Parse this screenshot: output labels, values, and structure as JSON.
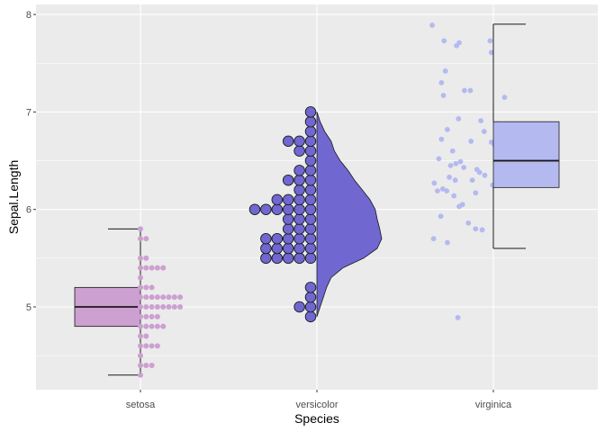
{
  "chart_data": {
    "type": "raincloud",
    "title": "",
    "xlabel": "Species",
    "ylabel": "Sepal.Length",
    "categories": [
      "setosa",
      "versicolor",
      "virginica"
    ],
    "ylim": [
      4.15,
      8.05
    ],
    "yticks": [
      5,
      6,
      7,
      8
    ],
    "grid": true,
    "legend": "none",
    "colors": {
      "panel": "#EBEBEB",
      "grid": "#FFFFFF",
      "setosa": "#CCA0D0",
      "versicolor": "#7067D0",
      "virginica": "#B4BAF0",
      "outline": "#1a1a1a"
    },
    "series": [
      {
        "name": "setosa",
        "geom": "boxplot+dotplot",
        "box": {
          "min": 4.3,
          "q1": 4.8,
          "median": 5.0,
          "q3": 5.2,
          "max": 5.8
        },
        "dots": [
          {
            "y": 4.3,
            "count": 1
          },
          {
            "y": 4.4,
            "count": 3
          },
          {
            "y": 4.5,
            "count": 1
          },
          {
            "y": 4.6,
            "count": 4
          },
          {
            "y": 4.7,
            "count": 2
          },
          {
            "y": 4.8,
            "count": 5
          },
          {
            "y": 4.9,
            "count": 4
          },
          {
            "y": 5.0,
            "count": 8
          },
          {
            "y": 5.1,
            "count": 8
          },
          {
            "y": 5.2,
            "count": 3
          },
          {
            "y": 5.3,
            "count": 1
          },
          {
            "y": 5.4,
            "count": 5
          },
          {
            "y": 5.5,
            "count": 2
          },
          {
            "y": 5.7,
            "count": 2
          },
          {
            "y": 5.8,
            "count": 1
          }
        ]
      },
      {
        "name": "versicolor",
        "geom": "dotplot+halfviolin",
        "dots": [
          {
            "y": 4.9,
            "count": 1
          },
          {
            "y": 5.0,
            "count": 2
          },
          {
            "y": 5.1,
            "count": 1
          },
          {
            "y": 5.2,
            "count": 1
          },
          {
            "y": 5.5,
            "count": 5
          },
          {
            "y": 5.6,
            "count": 5
          },
          {
            "y": 5.7,
            "count": 5
          },
          {
            "y": 5.8,
            "count": 3
          },
          {
            "y": 5.9,
            "count": 3
          },
          {
            "y": 6.0,
            "count": 6
          },
          {
            "y": 6.1,
            "count": 4
          },
          {
            "y": 6.2,
            "count": 2
          },
          {
            "y": 6.3,
            "count": 3
          },
          {
            "y": 6.4,
            "count": 2
          },
          {
            "y": 6.5,
            "count": 1
          },
          {
            "y": 6.6,
            "count": 2
          },
          {
            "y": 6.7,
            "count": 3
          },
          {
            "y": 6.8,
            "count": 1
          },
          {
            "y": 6.9,
            "count": 1
          },
          {
            "y": 7.0,
            "count": 1
          }
        ],
        "density": [
          [
            4.9,
            0.0
          ],
          [
            5.0,
            0.05
          ],
          [
            5.1,
            0.1
          ],
          [
            5.2,
            0.15
          ],
          [
            5.3,
            0.22
          ],
          [
            5.4,
            0.4
          ],
          [
            5.5,
            0.72
          ],
          [
            5.6,
            0.93
          ],
          [
            5.7,
            1.0
          ],
          [
            5.8,
            0.97
          ],
          [
            5.9,
            0.93
          ],
          [
            6.0,
            0.9
          ],
          [
            6.1,
            0.82
          ],
          [
            6.2,
            0.7
          ],
          [
            6.3,
            0.58
          ],
          [
            6.4,
            0.48
          ],
          [
            6.5,
            0.36
          ],
          [
            6.6,
            0.27
          ],
          [
            6.7,
            0.22
          ],
          [
            6.8,
            0.12
          ],
          [
            6.9,
            0.05
          ],
          [
            7.0,
            0.0
          ]
        ]
      },
      {
        "name": "virginica",
        "geom": "jitter+boxplot",
        "box": {
          "min": 5.6,
          "q1": 6.225,
          "median": 6.5,
          "q3": 6.9,
          "max": 7.9
        },
        "points": [
          {
            "y": 7.89,
            "offset": -0.93
          },
          {
            "y": 7.73,
            "offset": -0.75
          },
          {
            "y": 7.71,
            "offset": -0.52
          },
          {
            "y": 7.68,
            "offset": -0.56
          },
          {
            "y": 7.73,
            "offset": -0.05
          },
          {
            "y": 7.61,
            "offset": -0.03
          },
          {
            "y": 7.42,
            "offset": -0.73
          },
          {
            "y": 7.3,
            "offset": -0.79
          },
          {
            "y": 7.22,
            "offset": -0.44
          },
          {
            "y": 7.22,
            "offset": -0.35
          },
          {
            "y": 7.17,
            "offset": -0.76
          },
          {
            "y": 7.15,
            "offset": 0.17
          },
          {
            "y": 6.93,
            "offset": -0.53
          },
          {
            "y": 6.91,
            "offset": -0.19
          },
          {
            "y": 6.88,
            "offset": 0.07
          },
          {
            "y": 6.82,
            "offset": -0.7
          },
          {
            "y": 6.8,
            "offset": -0.14
          },
          {
            "y": 6.72,
            "offset": -0.79
          },
          {
            "y": 6.7,
            "offset": -0.34
          },
          {
            "y": 6.69,
            "offset": -0.03
          },
          {
            "y": 6.66,
            "offset": 0.02
          },
          {
            "y": 6.6,
            "offset": -0.62
          },
          {
            "y": 6.52,
            "offset": -0.83
          },
          {
            "y": 6.49,
            "offset": -0.5
          },
          {
            "y": 6.47,
            "offset": -0.57
          },
          {
            "y": 6.45,
            "offset": -0.65
          },
          {
            "y": 6.43,
            "offset": -0.45
          },
          {
            "y": 6.41,
            "offset": -0.25
          },
          {
            "y": 6.38,
            "offset": -0.21
          },
          {
            "y": 6.35,
            "offset": -0.13
          },
          {
            "y": 6.33,
            "offset": -0.67
          },
          {
            "y": 6.3,
            "offset": -0.58
          },
          {
            "y": 6.3,
            "offset": -0.32
          },
          {
            "y": 6.27,
            "offset": -0.9
          },
          {
            "y": 6.25,
            "offset": -0.01
          },
          {
            "y": 6.21,
            "offset": -0.77
          },
          {
            "y": 6.19,
            "offset": -0.71
          },
          {
            "y": 6.19,
            "offset": -0.85
          },
          {
            "y": 6.17,
            "offset": -0.27
          },
          {
            "y": 6.14,
            "offset": -0.6
          },
          {
            "y": 6.05,
            "offset": -0.47
          },
          {
            "y": 6.03,
            "offset": -0.52
          },
          {
            "y": 5.93,
            "offset": -0.8
          },
          {
            "y": 5.86,
            "offset": -0.38
          },
          {
            "y": 5.8,
            "offset": -0.27
          },
          {
            "y": 5.79,
            "offset": -0.17
          },
          {
            "y": 5.7,
            "offset": -0.91
          },
          {
            "y": 5.66,
            "offset": -0.7
          },
          {
            "y": 4.89,
            "offset": -0.54
          }
        ]
      }
    ]
  }
}
